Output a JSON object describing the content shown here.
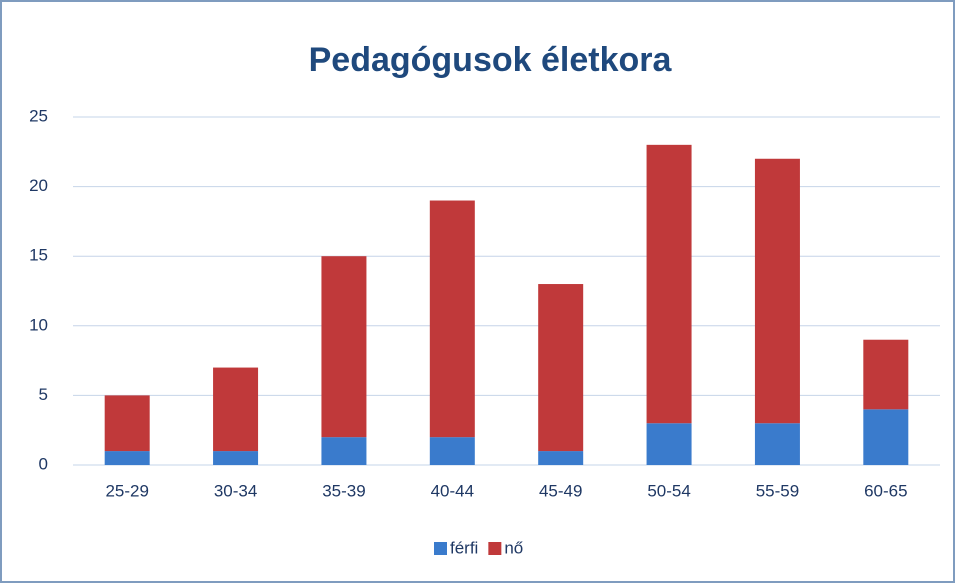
{
  "chart_data": {
    "type": "bar",
    "stacked": true,
    "title": "Pedagógusok életkora",
    "categories": [
      "25-29",
      "30-34",
      "35-39",
      "40-44",
      "45-49",
      "50-54",
      "55-59",
      "60-65"
    ],
    "series": [
      {
        "name": "férfi",
        "color": "#3a7bcc",
        "values": [
          1,
          1,
          2,
          2,
          1,
          3,
          3,
          4
        ]
      },
      {
        "name": "nő",
        "color": "#c0393a",
        "values": [
          4,
          6,
          13,
          17,
          12,
          20,
          19,
          5
        ]
      }
    ],
    "ylim": [
      0,
      25
    ],
    "yticks": [
      0,
      5,
      10,
      15,
      20,
      25
    ],
    "grid": true,
    "legend": "bottom"
  }
}
